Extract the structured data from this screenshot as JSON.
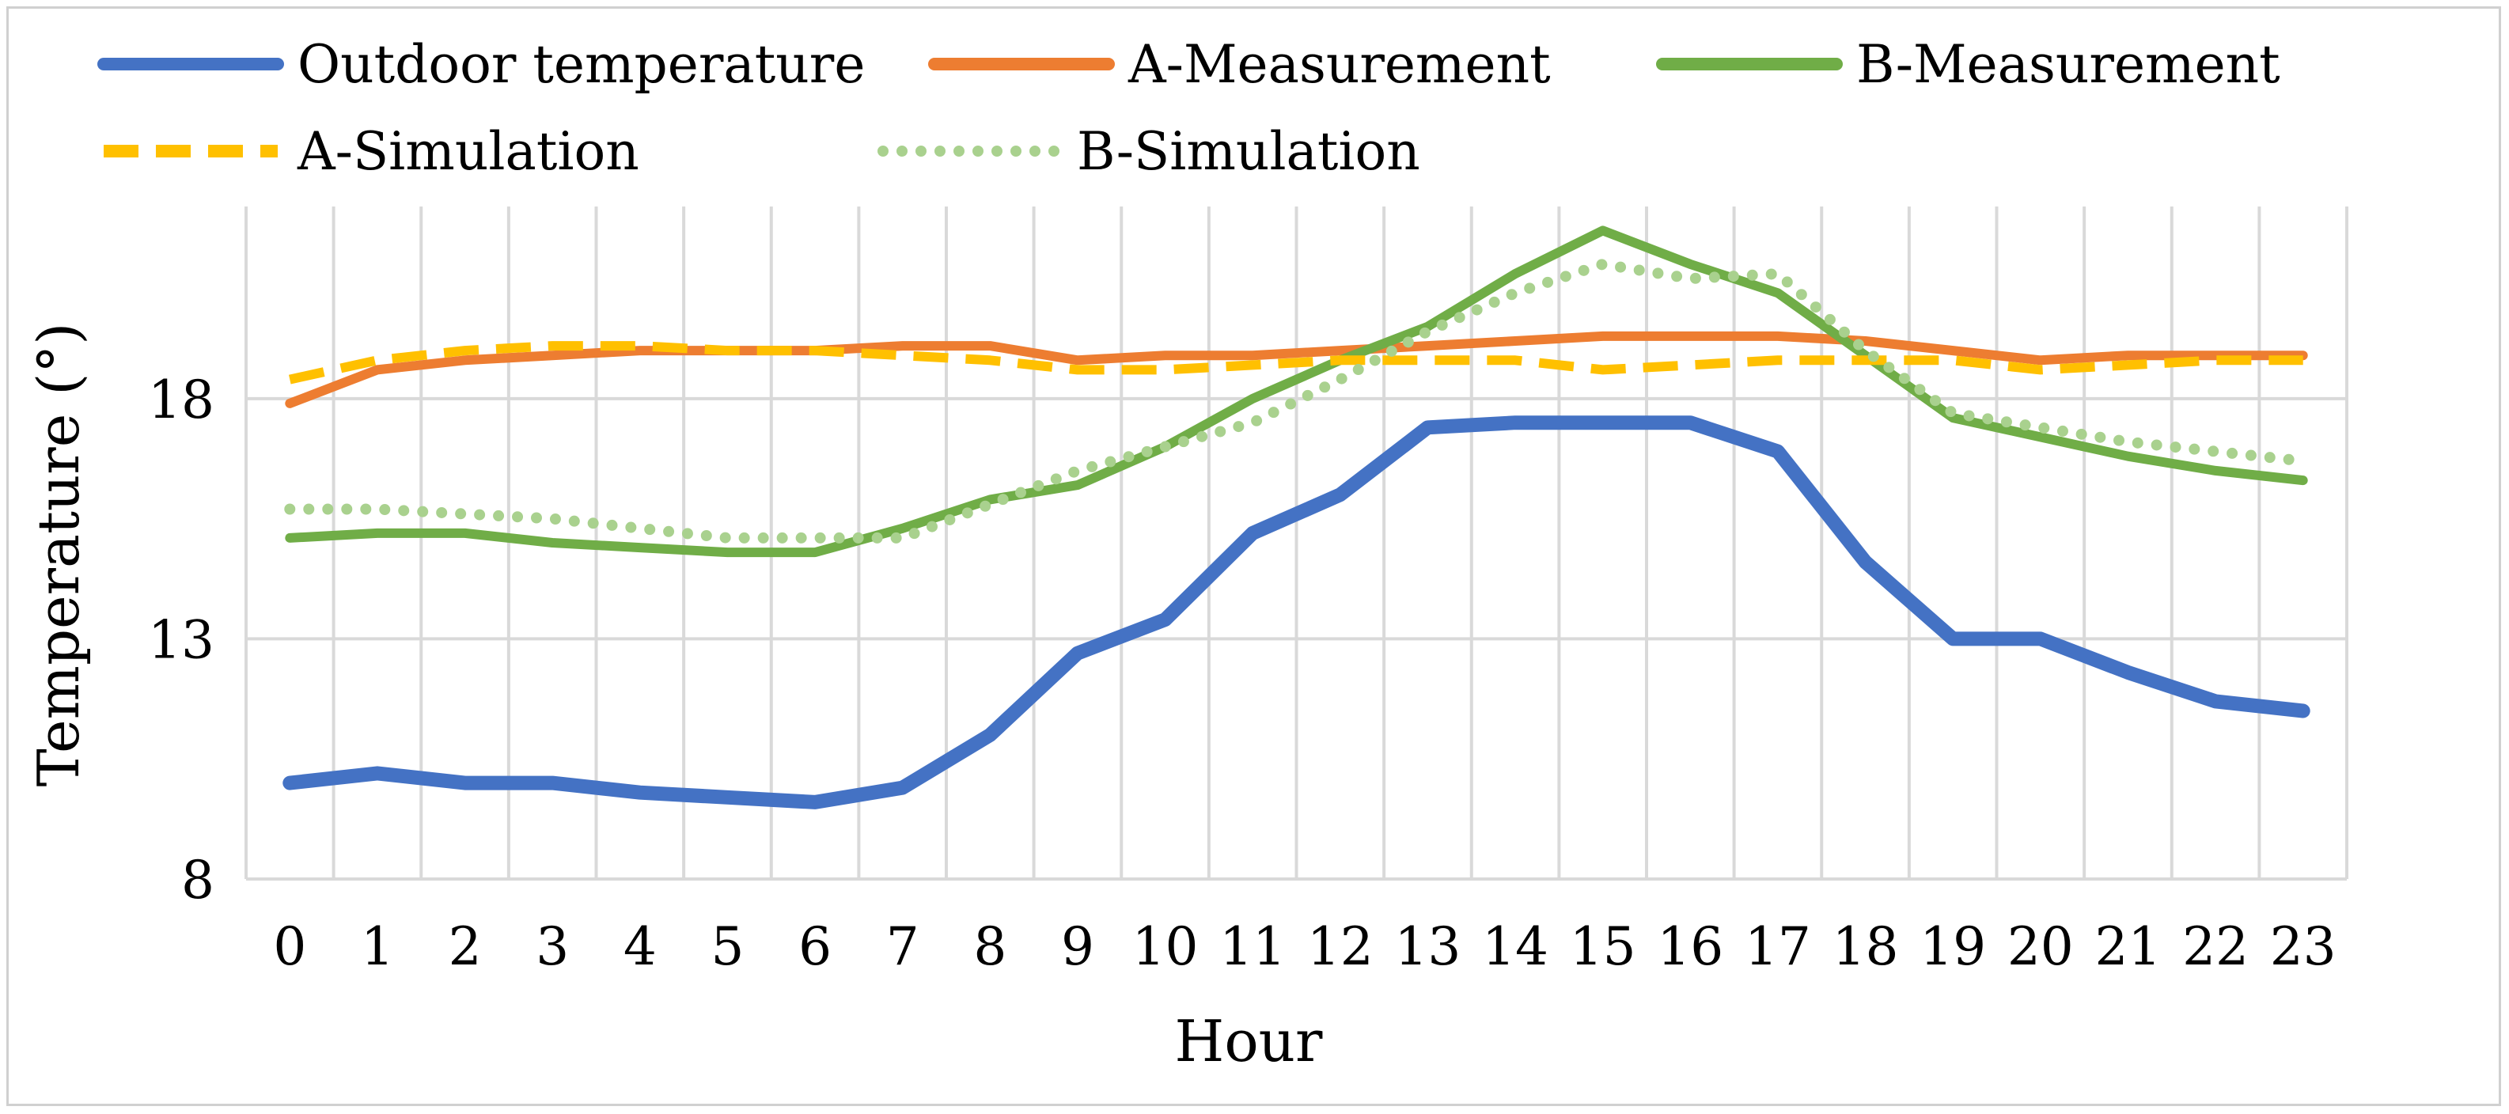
{
  "chart_data": {
    "type": "line",
    "title": "",
    "xlabel": "Hour",
    "ylabel": "Temperature (°)",
    "x": [
      0,
      1,
      2,
      3,
      4,
      5,
      6,
      7,
      8,
      9,
      10,
      11,
      12,
      13,
      14,
      15,
      16,
      17,
      18,
      19,
      20,
      21,
      22,
      23
    ],
    "ylim": [
      8,
      22
    ],
    "yticks": [
      8,
      13,
      18
    ],
    "grid": "vertical-and-horizontal",
    "legend_position": "top",
    "series": [
      {
        "name": "Outdoor temperature",
        "color": "#4472c4",
        "style": "solid",
        "values": [
          10.0,
          10.2,
          10.0,
          10.0,
          9.8,
          9.7,
          9.6,
          9.9,
          11.0,
          12.7,
          13.4,
          15.2,
          16.0,
          17.4,
          17.5,
          17.5,
          17.5,
          16.9,
          14.6,
          13.0,
          13.0,
          12.3,
          11.7,
          11.5
        ]
      },
      {
        "name": "A-Measurement",
        "color": "#ed7d31",
        "style": "solid",
        "values": [
          17.9,
          18.6,
          18.8,
          18.9,
          19.0,
          19.0,
          19.0,
          19.1,
          19.1,
          18.8,
          18.9,
          18.9,
          19.0,
          19.1,
          19.2,
          19.3,
          19.3,
          19.3,
          19.2,
          19.0,
          18.8,
          18.9,
          18.9,
          18.9
        ]
      },
      {
        "name": "B-Measurement",
        "color": "#70ad47",
        "style": "solid",
        "values": [
          15.1,
          15.2,
          15.2,
          15.0,
          14.9,
          14.8,
          14.8,
          15.3,
          15.9,
          16.2,
          17.0,
          18.0,
          18.8,
          19.5,
          20.6,
          21.5,
          20.8,
          20.2,
          18.9,
          17.6,
          17.2,
          16.8,
          16.5,
          16.3
        ]
      },
      {
        "name": "A-Simulation",
        "color": "#ffc000",
        "style": "dashed",
        "values": [
          18.4,
          18.8,
          19.0,
          19.1,
          19.1,
          19.0,
          19.0,
          18.9,
          18.8,
          18.6,
          18.6,
          18.7,
          18.8,
          18.8,
          18.8,
          18.6,
          18.7,
          18.8,
          18.8,
          18.8,
          18.6,
          18.7,
          18.8,
          18.8
        ]
      },
      {
        "name": "B-Simulation",
        "color": "#a9d18e",
        "style": "dotted",
        "values": [
          15.7,
          15.7,
          15.6,
          15.5,
          15.3,
          15.1,
          15.1,
          15.1,
          15.8,
          16.5,
          17.0,
          17.5,
          18.4,
          19.4,
          20.2,
          20.8,
          20.5,
          20.6,
          19.0,
          17.7,
          17.4,
          17.1,
          16.9,
          16.7
        ]
      }
    ]
  }
}
